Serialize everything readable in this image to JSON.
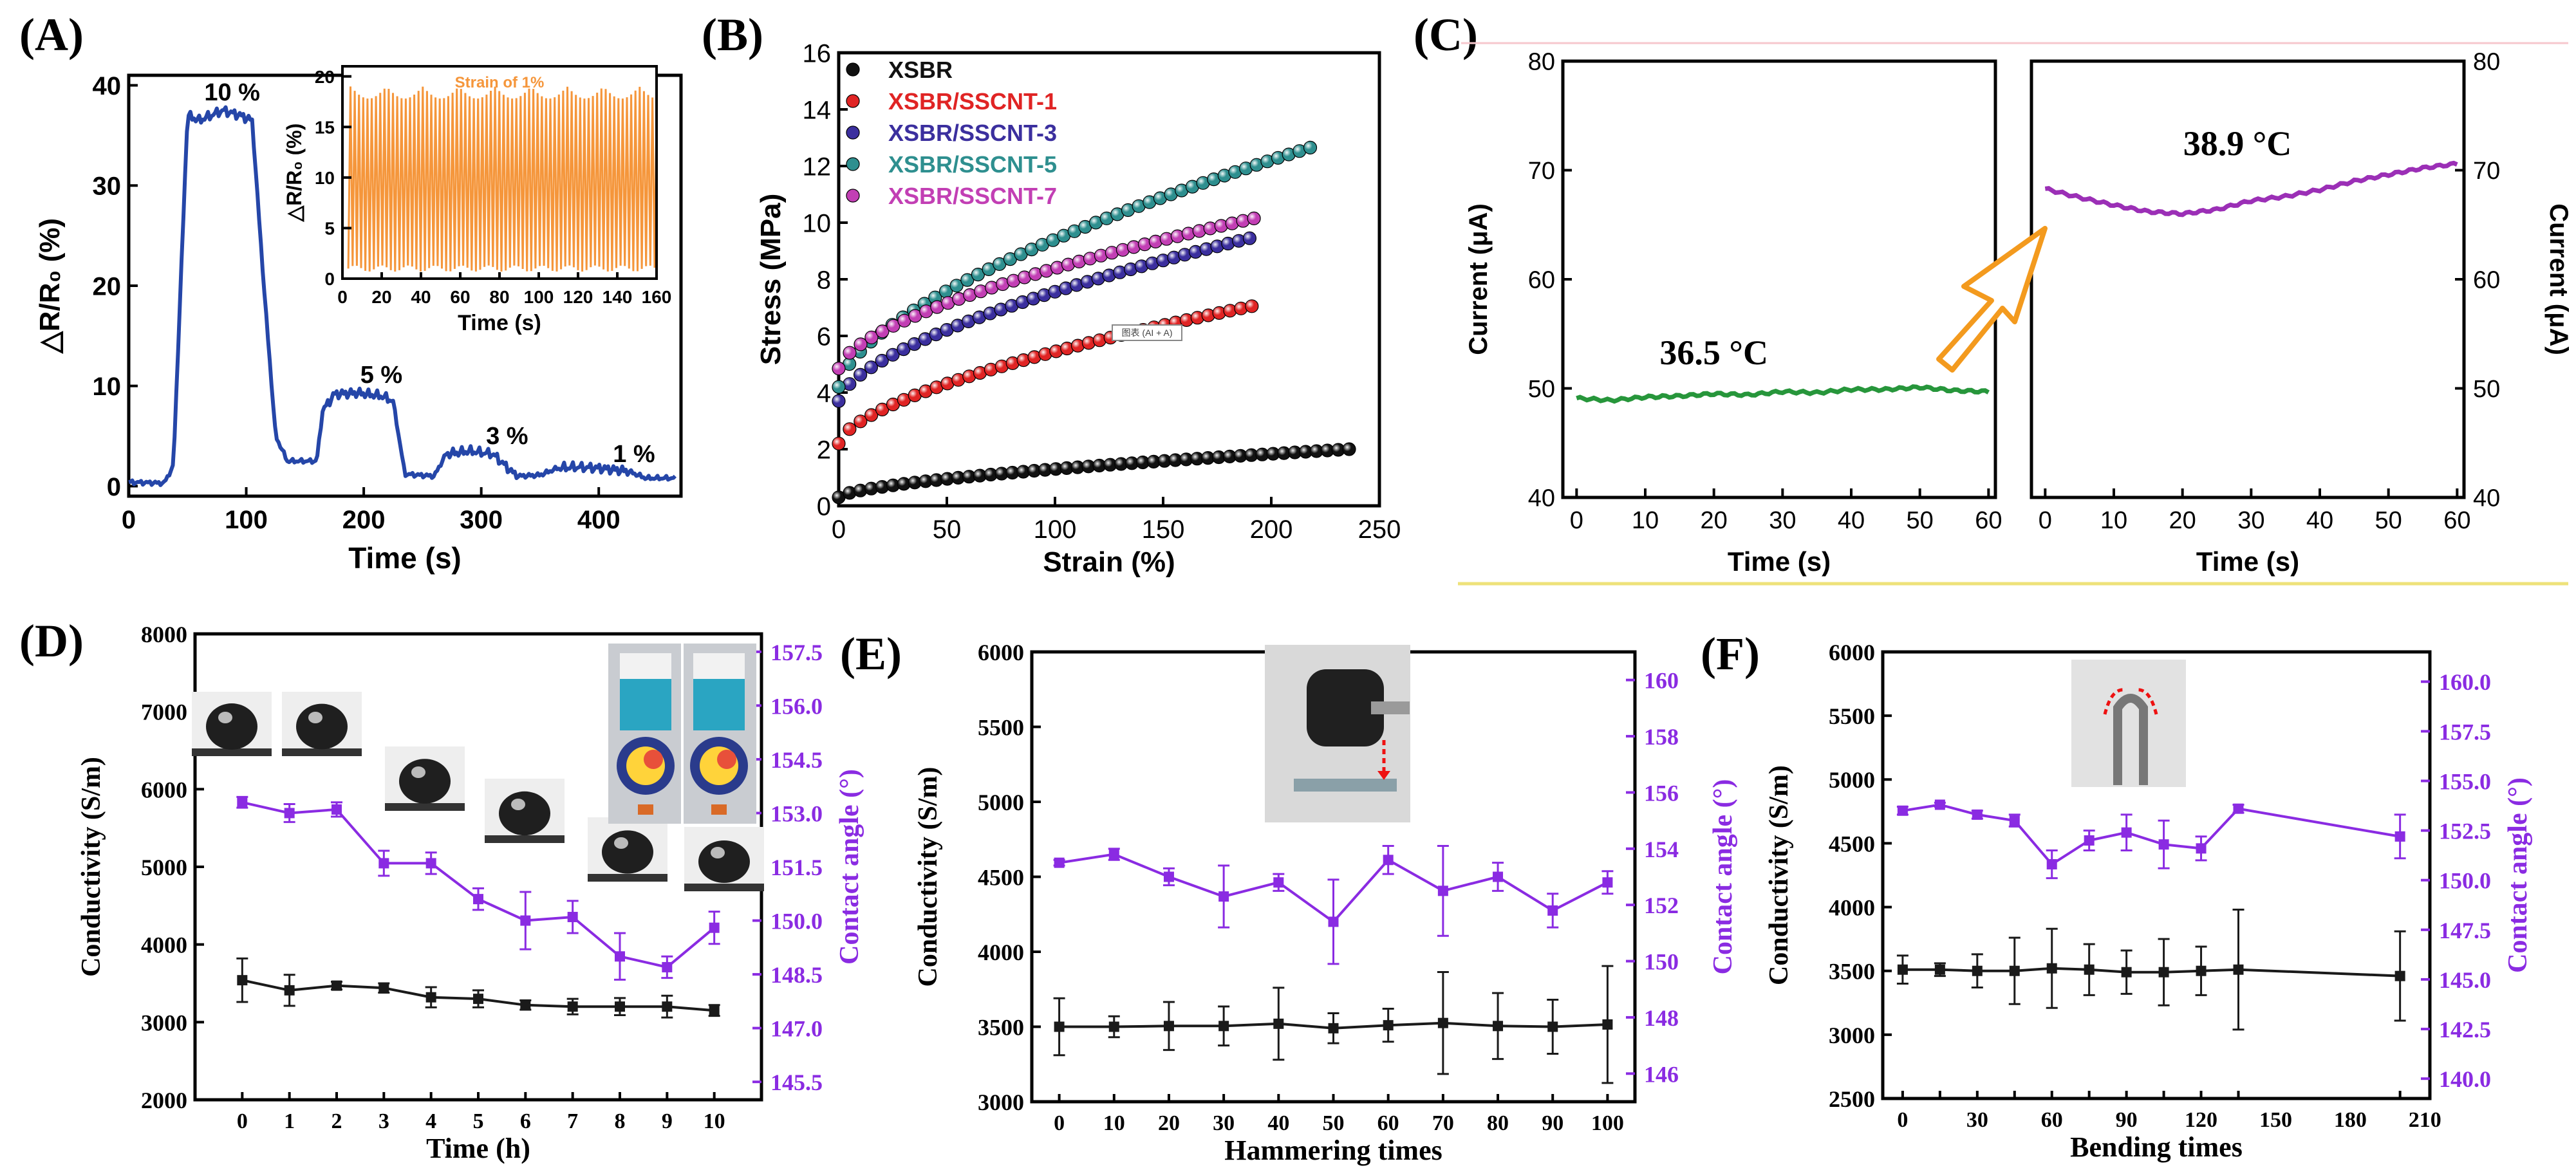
{
  "chart_data": [
    {
      "panel": "(A)",
      "type": "line",
      "xlabel": "Time (s)",
      "ylabel": "△R/R₀ (%)",
      "xlim": [
        0,
        470
      ],
      "ylim": [
        -1,
        41
      ],
      "xticks": [
        0,
        100,
        200,
        300,
        400
      ],
      "yticks": [
        0,
        10,
        20,
        30,
        40
      ],
      "color": "#2546a8",
      "series": [
        {
          "name": "△R/R0",
          "x": [
            0,
            30,
            38,
            50,
            60,
            80,
            95,
            105,
            115,
            125,
            135,
            160,
            165,
            175,
            195,
            215,
            225,
            235,
            260,
            270,
            290,
            310,
            330,
            350,
            365,
            380,
            400,
            425,
            440,
            465
          ],
          "y": [
            0.4,
            0.3,
            2,
            37,
            36.5,
            37.5,
            37,
            36.5,
            20,
            5,
            2.5,
            2.5,
            7.5,
            9.2,
            9.3,
            9,
            8.5,
            1.2,
            1,
            3.2,
            3.5,
            3.2,
            1,
            1.1,
            1.8,
            1.9,
            1.8,
            1.5,
            0.8,
            0.8
          ]
        }
      ],
      "annotations": [
        {
          "x": 88,
          "y": 38.5,
          "text": "10 %"
        },
        {
          "x": 215,
          "y": 10.3,
          "text": "5 %"
        },
        {
          "x": 322,
          "y": 4.2,
          "text": "3 %"
        },
        {
          "x": 430,
          "y": 2.4,
          "text": "1 %"
        }
      ],
      "inset": {
        "title": "Strain of 1%",
        "xlabel": "Time (s)",
        "ylabel": "△R/R₀ (%)",
        "xlim": [
          0,
          160
        ],
        "ylim": [
          0,
          21
        ],
        "xticks": [
          0,
          20,
          40,
          60,
          80,
          100,
          120,
          140,
          160
        ],
        "yticks": [
          0,
          5,
          10,
          15,
          20
        ],
        "cycles": 72,
        "peak": 19,
        "trough": 1,
        "color": "#f5963b"
      }
    },
    {
      "panel": "(B)",
      "type": "scatter",
      "xlabel": "Strain (%)",
      "ylabel": "Stress (MPa)",
      "xlim": [
        0,
        250
      ],
      "ylim": [
        0,
        16
      ],
      "xticks": [
        0,
        50,
        100,
        150,
        200,
        250
      ],
      "yticks": [
        0,
        2,
        4,
        6,
        8,
        10,
        12,
        14,
        16
      ],
      "series": [
        {
          "name": "XSBR",
          "color": "#111111",
          "strain_max": 236,
          "stress_end": 2.0,
          "stress_start": 0.3
        },
        {
          "name": "XSBR/SSCNT-1",
          "color": "#e02424",
          "strain_max": 191,
          "stress_end": 7.05,
          "stress_start": 2.2
        },
        {
          "name": "XSBR/SSCNT-3",
          "color": "#3b2f9e",
          "strain_max": 190,
          "stress_end": 9.45,
          "stress_start": 3.7
        },
        {
          "name": "XSBR/SSCNT-5",
          "color": "#2e8f8f",
          "strain_max": 218,
          "stress_end": 12.65,
          "stress_start": 4.2
        },
        {
          "name": "XSBR/SSCNT-7",
          "color": "#c23fb4",
          "strain_max": 192,
          "stress_end": 10.15,
          "stress_start": 4.85
        }
      ],
      "note": "图表 (AI + A)"
    },
    {
      "panel": "(C)",
      "type": "line",
      "ylabel_left": "Current (μA)",
      "ylabel_right": "Current (μA)",
      "ylim": [
        40,
        80
      ],
      "yticks": [
        40,
        50,
        60,
        70,
        80
      ],
      "subplots": [
        {
          "xlabel": "Time (s)",
          "xlim": [
            -2,
            61
          ],
          "xticks": [
            0,
            10,
            20,
            30,
            40,
            50,
            60
          ],
          "color": "#27963b",
          "label": "36.5 °C",
          "x": [
            0,
            5,
            10,
            15,
            20,
            25,
            30,
            35,
            40,
            45,
            50,
            55,
            60
          ],
          "y": [
            49.1,
            48.9,
            49.2,
            49.3,
            49.5,
            49.4,
            49.7,
            49.6,
            49.9,
            49.9,
            50.1,
            49.8,
            49.7
          ]
        },
        {
          "xlabel": "Time (s)",
          "xlim": [
            -2,
            61
          ],
          "xticks": [
            0,
            10,
            20,
            30,
            40,
            50,
            60
          ],
          "color": "#9b2fb6",
          "label": "38.9 °C",
          "x": [
            0,
            5,
            10,
            15,
            20,
            25,
            30,
            35,
            40,
            45,
            50,
            55,
            60
          ],
          "y": [
            68.3,
            67.5,
            66.8,
            66.2,
            66.0,
            66.4,
            67.2,
            67.6,
            68.2,
            69.0,
            69.6,
            70.2,
            70.6
          ]
        }
      ]
    },
    {
      "panel": "(D)",
      "type": "line",
      "xlabel": "Time (h)",
      "ylabel_left": "Conductivity (S/m)",
      "ylabel_right": "Contact angle (°)",
      "x": [
        0,
        1,
        2,
        3,
        4,
        5,
        6,
        7,
        8,
        9,
        10
      ],
      "xlim": [
        -1,
        11
      ],
      "ylim_left": [
        2000,
        8000
      ],
      "yticks_left": [
        2000,
        3000,
        4000,
        5000,
        6000,
        7000,
        8000
      ],
      "ylim_right": [
        145,
        158
      ],
      "yticks_right": [
        "145.5",
        "147.0",
        "148.5",
        "150.0",
        "151.5",
        "153.0",
        "154.5",
        "156.0",
        "157.5"
      ],
      "series": [
        {
          "name": "Conductivity",
          "axis": "left",
          "color": "#1a1a1a",
          "values": [
            3540,
            3410,
            3470,
            3440,
            3320,
            3300,
            3220,
            3200,
            3200,
            3200,
            3150
          ],
          "errors": [
            280,
            200,
            50,
            60,
            130,
            110,
            60,
            100,
            110,
            140,
            70
          ]
        },
        {
          "name": "Contact angle",
          "axis": "right",
          "color": "#8a2be2",
          "values": [
            153.3,
            153.0,
            153.1,
            151.6,
            151.6,
            150.6,
            150.0,
            150.1,
            149.0,
            148.7,
            149.8
          ],
          "errors": [
            0.15,
            0.25,
            0.2,
            0.35,
            0.3,
            0.3,
            0.8,
            0.45,
            0.65,
            0.3,
            0.45
          ]
        }
      ]
    },
    {
      "panel": "(E)",
      "type": "line",
      "xlabel": "Hammering times",
      "ylabel_left": "Conductivity (S/m)",
      "ylabel_right": "Contact angle (°)",
      "x": [
        0,
        10,
        20,
        30,
        40,
        50,
        60,
        70,
        80,
        90,
        100
      ],
      "xlim": [
        -5,
        105
      ],
      "ylim_left": [
        3000,
        6000
      ],
      "yticks_left": [
        3000,
        3500,
        4000,
        4500,
        5000,
        5500,
        6000
      ],
      "ylim_right": [
        145,
        161
      ],
      "yticks_right": [
        "146",
        "148",
        "150",
        "152",
        "154",
        "156",
        "158",
        "160"
      ],
      "series": [
        {
          "name": "Conductivity",
          "axis": "left",
          "color": "#1a1a1a",
          "values": [
            3500,
            3500,
            3505,
            3505,
            3520,
            3490,
            3510,
            3525,
            3505,
            3500,
            3515
          ],
          "errors": [
            190,
            70,
            160,
            130,
            240,
            100,
            110,
            340,
            220,
            180,
            390
          ]
        },
        {
          "name": "Contact angle",
          "axis": "right",
          "color": "#8a2be2",
          "values": [
            153.5,
            153.8,
            153.0,
            152.3,
            152.8,
            151.4,
            153.6,
            152.5,
            153.0,
            151.8,
            152.8
          ],
          "errors": [
            0.1,
            0.2,
            0.3,
            1.1,
            0.3,
            1.5,
            0.5,
            1.6,
            0.5,
            0.6,
            0.4
          ]
        }
      ]
    },
    {
      "panel": "(F)",
      "type": "line",
      "xlabel": "Bending times",
      "ylabel_left": "Conductivity (S/m)",
      "ylabel_right": "Contact angle (°)",
      "x": [
        0,
        15,
        30,
        45,
        60,
        75,
        90,
        105,
        120,
        135,
        200
      ],
      "xlim": [
        -8,
        212
      ],
      "xticks": [
        0,
        30,
        60,
        90,
        120,
        150,
        180,
        210
      ],
      "ylim_left": [
        2500,
        6000
      ],
      "yticks_left": [
        2500,
        3000,
        3500,
        4000,
        4500,
        5000,
        5500,
        6000
      ],
      "ylim_right": [
        139,
        161.5
      ],
      "yticks_right": [
        "140.0",
        "142.5",
        "145.0",
        "147.5",
        "150.0",
        "152.5",
        "155.0",
        "157.5",
        "160.0"
      ],
      "series": [
        {
          "name": "Conductivity",
          "axis": "left",
          "color": "#1a1a1a",
          "values": [
            3510,
            3510,
            3500,
            3500,
            3520,
            3510,
            3490,
            3490,
            3500,
            3510,
            3460
          ],
          "errors": [
            110,
            50,
            130,
            260,
            310,
            200,
            170,
            260,
            190,
            470,
            350
          ]
        },
        {
          "name": "Contact angle",
          "axis": "right",
          "color": "#8a2be2",
          "values": [
            153.5,
            153.8,
            153.3,
            153.0,
            150.8,
            152.0,
            152.4,
            151.8,
            151.6,
            153.6,
            152.2
          ],
          "errors": [
            0.2,
            0.1,
            0.2,
            0.3,
            0.7,
            0.5,
            0.9,
            1.2,
            0.6,
            0.2,
            1.1
          ]
        }
      ]
    }
  ]
}
